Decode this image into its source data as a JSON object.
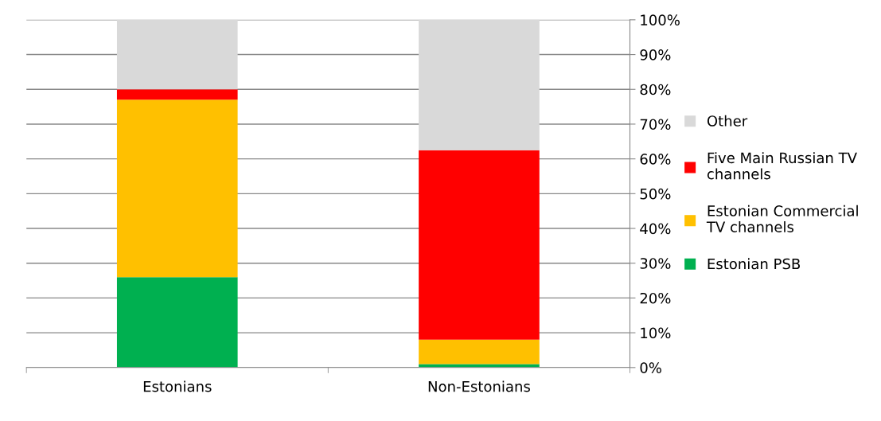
{
  "chart_data": {
    "type": "bar",
    "stacked": true,
    "categories": [
      "Estonians",
      "Non-Estonians"
    ],
    "series": [
      {
        "name": "Estonian PSB",
        "color": "#00b050",
        "values": [
          26,
          1
        ]
      },
      {
        "name": "Estonian Commercial TV channels",
        "color": "#ffc000",
        "values": [
          51,
          7
        ]
      },
      {
        "name": "Five Main Russian TV channels",
        "color": "#ff0000",
        "values": [
          3,
          54.5
        ]
      },
      {
        "name": "Other",
        "color": "#d9d9d9",
        "values": [
          20,
          37.5
        ]
      }
    ],
    "ylim": [
      0,
      100
    ],
    "yticks": [
      {
        "value": 0,
        "label": "0%"
      },
      {
        "value": 10,
        "label": "10%"
      },
      {
        "value": 20,
        "label": "20%"
      },
      {
        "value": 30,
        "label": "30%"
      },
      {
        "value": 40,
        "label": "40%"
      },
      {
        "value": 50,
        "label": "50%"
      },
      {
        "value": 60,
        "label": "60%"
      },
      {
        "value": 70,
        "label": "70%"
      },
      {
        "value": 80,
        "label": "80%"
      },
      {
        "value": 90,
        "label": "90%"
      },
      {
        "value": 100,
        "label": "100%"
      }
    ],
    "grid": "y",
    "legend": "right"
  }
}
